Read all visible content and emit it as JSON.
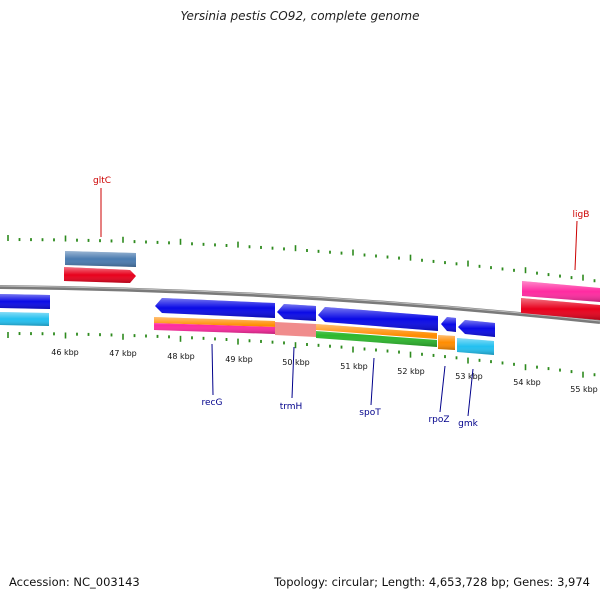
{
  "title": "Yersinia pestis CO92, complete genome",
  "footer": {
    "accession": "Accession: NC_003143",
    "summary": "Topology: circular; Length: 4,653,728 bp; Genes: 3,974"
  },
  "map": {
    "kbp_labels": [
      "46 kbp",
      "47 kbp",
      "48 kbp",
      "49 kbp",
      "50 kbp",
      "51 kbp",
      "52 kbp",
      "53 kbp",
      "54 kbp",
      "55 kbp"
    ],
    "genes_top": [
      {
        "name": "gltC",
        "color": "#cc0000"
      },
      {
        "name": "ligB",
        "color": "#cc0000"
      }
    ],
    "genes_bottom": [
      {
        "name": "recG",
        "color": "#00008b"
      },
      {
        "name": "trmH",
        "color": "#00008b"
      },
      {
        "name": "spoT",
        "color": "#00008b"
      },
      {
        "name": "rpoZ",
        "color": "#00008b"
      },
      {
        "name": "gmk",
        "color": "#00008b"
      }
    ],
    "colors": {
      "backbone": "#7a7a7a",
      "ticks": "#2e8b1e",
      "cds_forward": "#e8001c",
      "cds_forward_alt": "#4a7bb0",
      "cds_reverse": "#0a0ae6",
      "cds_reverse_alt": "#22c0f0",
      "cog_orange": "#ff8c00",
      "cog_pink": "#ff2aa0",
      "cog_green": "#2db82d",
      "cog_salmon": "#f08c8c"
    }
  }
}
